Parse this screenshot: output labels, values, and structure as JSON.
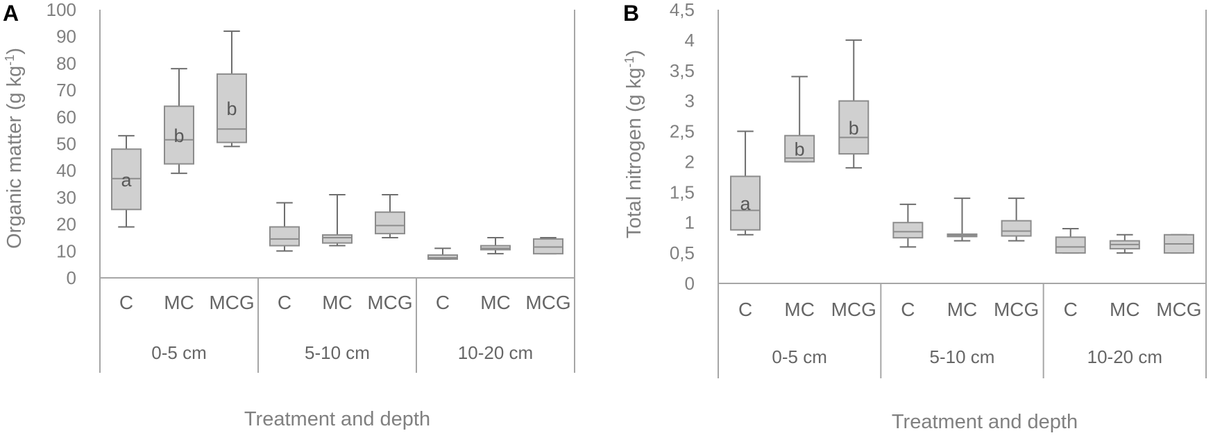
{
  "chart_data": [
    {
      "type": "box",
      "panel": "A",
      "ylabel": "Organic matter (g kg",
      "ylabel_sup": "-1",
      "ylabel_close": ")",
      "xlabel": "Treatment and depth",
      "ylim": [
        0,
        100
      ],
      "yticks": [
        "0",
        "10",
        "20",
        "30",
        "40",
        "50",
        "60",
        "70",
        "80",
        "90",
        "100"
      ],
      "groups": [
        "0-5 cm",
        "5-10 cm",
        "10-20 cm"
      ],
      "categories": [
        "C",
        "MC",
        "MCG"
      ],
      "boxes": [
        {
          "group": 0,
          "cat": 0,
          "min": 19,
          "q1": 25.5,
          "median": 37,
          "q3": 48,
          "max": 53,
          "letter": "a"
        },
        {
          "group": 0,
          "cat": 1,
          "min": 39,
          "q1": 42.5,
          "median": 51.5,
          "q3": 64,
          "max": 78,
          "letter": "b"
        },
        {
          "group": 0,
          "cat": 2,
          "min": 49,
          "q1": 50.5,
          "median": 55.5,
          "q3": 76,
          "max": 92,
          "letter": "b"
        },
        {
          "group": 1,
          "cat": 0,
          "min": 10,
          "q1": 12,
          "median": 14.5,
          "q3": 19,
          "max": 28
        },
        {
          "group": 1,
          "cat": 1,
          "min": 12,
          "q1": 13,
          "median": 15,
          "q3": 16,
          "max": 31
        },
        {
          "group": 1,
          "cat": 2,
          "min": 15,
          "q1": 16.5,
          "median": 19.5,
          "q3": 24.5,
          "max": 31
        },
        {
          "group": 2,
          "cat": 0,
          "min": 7,
          "q1": 7,
          "median": 7.5,
          "q3": 8.5,
          "max": 11
        },
        {
          "group": 2,
          "cat": 1,
          "min": 9,
          "q1": 10.5,
          "median": 11,
          "q3": 12,
          "max": 15
        },
        {
          "group": 2,
          "cat": 2,
          "min": 9,
          "q1": 9,
          "median": 11.5,
          "q3": 14.5,
          "max": 15
        }
      ]
    },
    {
      "type": "box",
      "panel": "B",
      "ylabel": "Total nitrogen (g kg",
      "ylabel_sup": "-1",
      "ylabel_close": ")",
      "xlabel": "Treatment and depth",
      "ylim": [
        0,
        4.5
      ],
      "yticks": [
        "0",
        "0,5",
        "1",
        "1,5",
        "2",
        "2,5",
        "3",
        "3,5",
        "4",
        "4,5"
      ],
      "groups": [
        "0-5 cm",
        "5-10 cm",
        "10-20 cm"
      ],
      "categories": [
        "C",
        "MC",
        "MCG"
      ],
      "boxes": [
        {
          "group": 0,
          "cat": 0,
          "min": 0.8,
          "q1": 0.88,
          "median": 1.2,
          "q3": 1.76,
          "max": 2.5,
          "letter": "a"
        },
        {
          "group": 0,
          "cat": 1,
          "min": 2.0,
          "q1": 2.0,
          "median": 2.06,
          "q3": 2.43,
          "max": 3.4,
          "letter": "b"
        },
        {
          "group": 0,
          "cat": 2,
          "min": 1.9,
          "q1": 2.13,
          "median": 2.4,
          "q3": 3.0,
          "max": 4.0,
          "letter": "b"
        },
        {
          "group": 1,
          "cat": 0,
          "min": 0.6,
          "q1": 0.75,
          "median": 0.85,
          "q3": 1.0,
          "max": 1.3
        },
        {
          "group": 1,
          "cat": 1,
          "min": 0.7,
          "q1": 0.77,
          "median": 0.79,
          "q3": 0.81,
          "max": 1.4
        },
        {
          "group": 1,
          "cat": 2,
          "min": 0.7,
          "q1": 0.78,
          "median": 0.86,
          "q3": 1.03,
          "max": 1.4
        },
        {
          "group": 2,
          "cat": 0,
          "min": 0.5,
          "q1": 0.5,
          "median": 0.6,
          "q3": 0.76,
          "max": 0.9
        },
        {
          "group": 2,
          "cat": 1,
          "min": 0.5,
          "q1": 0.57,
          "median": 0.64,
          "q3": 0.7,
          "max": 0.8
        },
        {
          "group": 2,
          "cat": 2,
          "min": 0.5,
          "q1": 0.5,
          "median": 0.65,
          "q3": 0.8,
          "max": 0.8
        }
      ]
    }
  ]
}
